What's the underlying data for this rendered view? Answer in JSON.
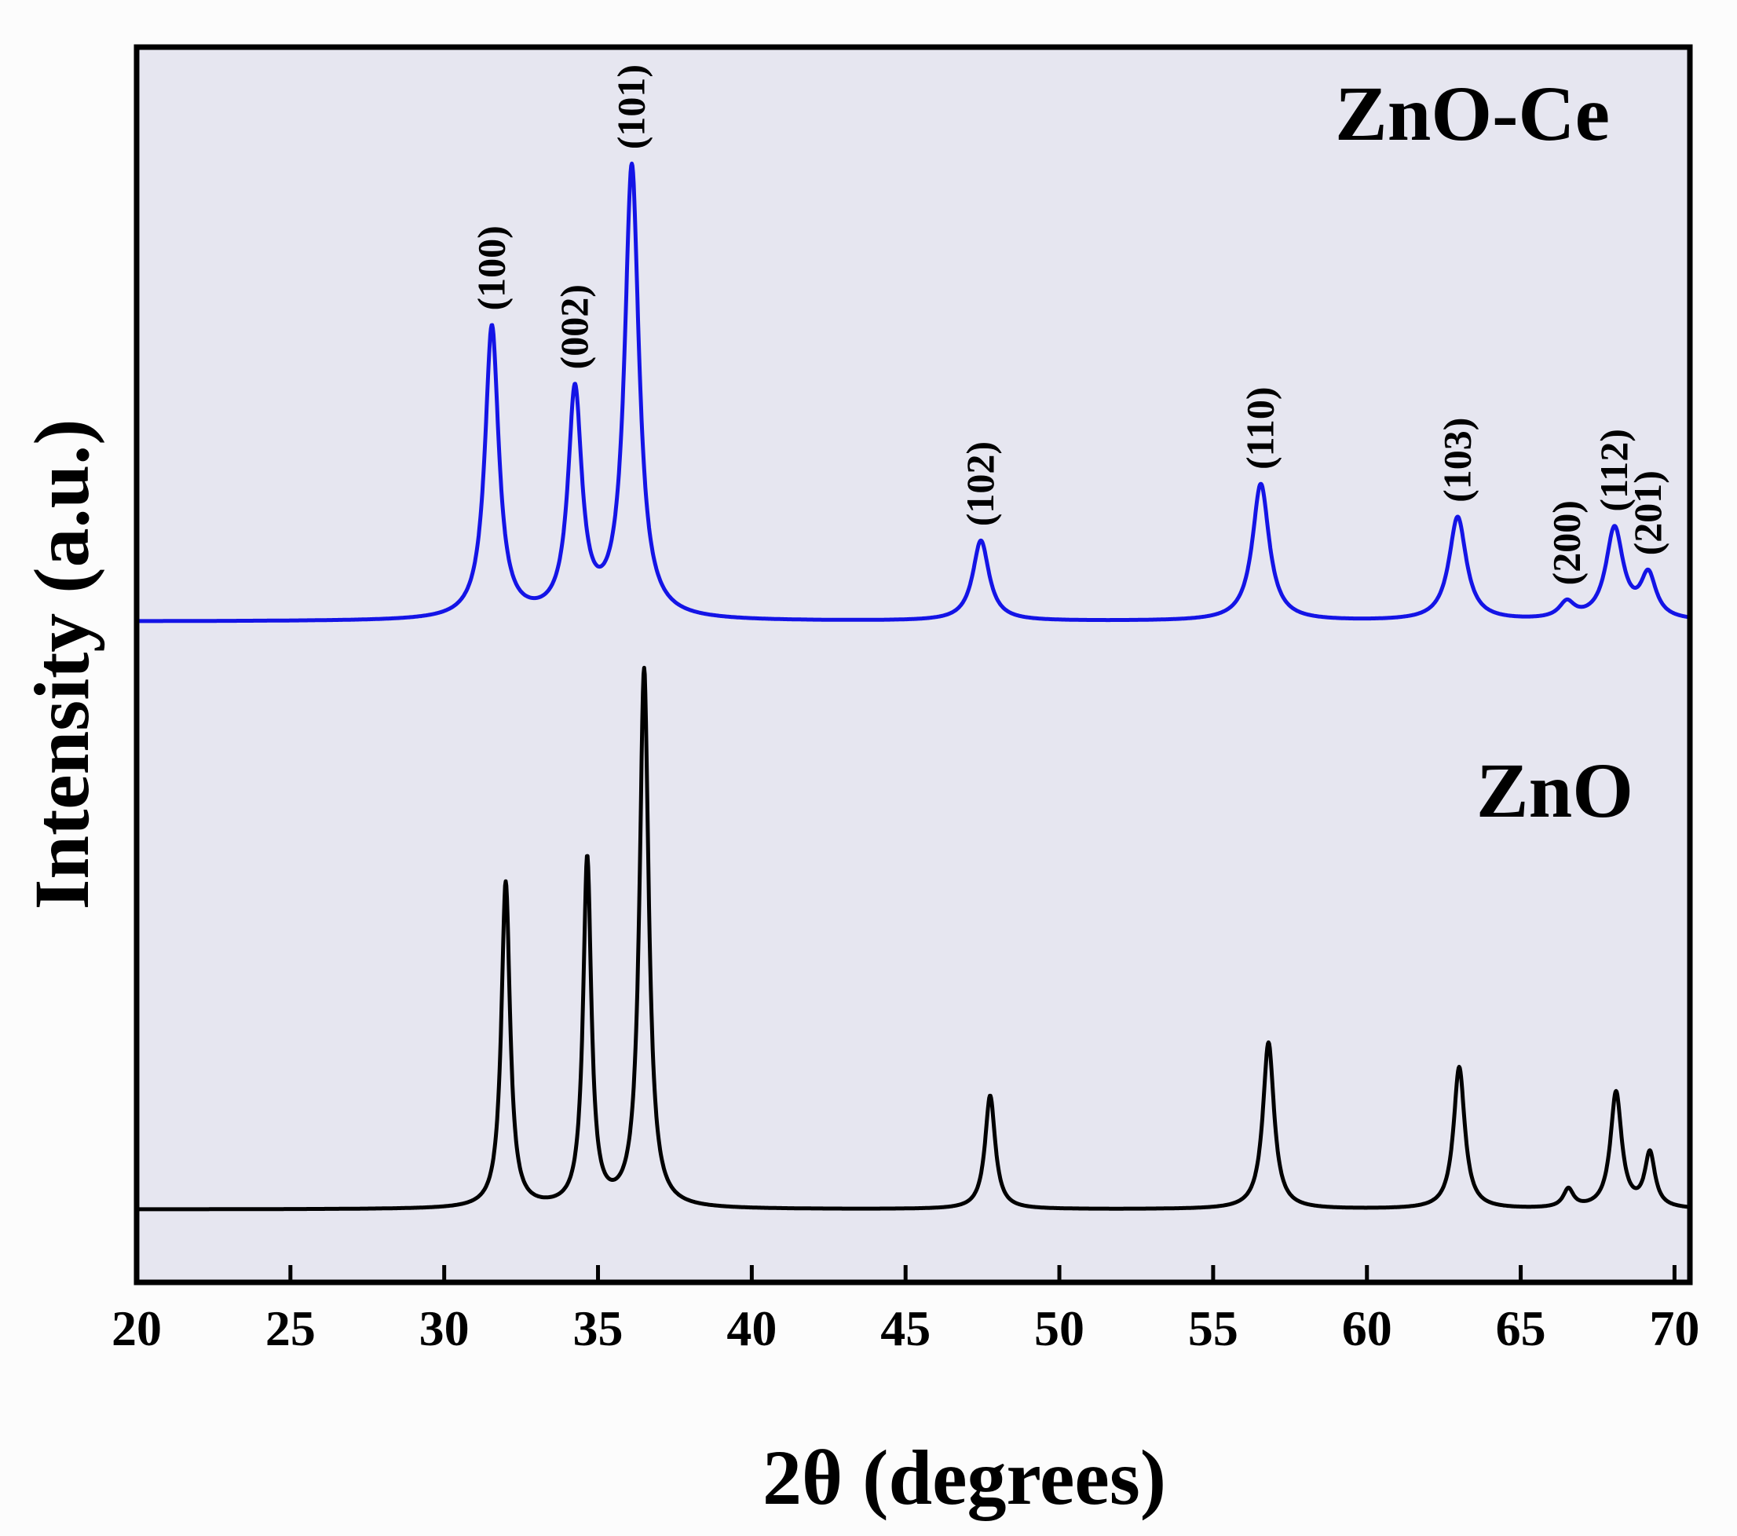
{
  "chart_data": {
    "type": "line",
    "title": "",
    "xlabel": "2θ (degrees)",
    "ylabel": "Intensity (a.u.)",
    "xlim": [
      20,
      70.5
    ],
    "ylim": [
      0,
      100
    ],
    "x_ticks": [
      20,
      25,
      30,
      35,
      40,
      45,
      50,
      55,
      60,
      65,
      70
    ],
    "y_ticks_shown": false,
    "grid": false,
    "legend": "none",
    "plot_background": "#e6e6f0",
    "page_background": "#fcfcfc",
    "series": [
      {
        "name": "ZnO-Ce",
        "color": "#1414e6",
        "baseline": 53.5,
        "peaks": [
          {
            "x": 31.55,
            "height": 23.7,
            "width": 0.27,
            "hkl": "(100)"
          },
          {
            "x": 34.25,
            "height": 18.2,
            "width": 0.27,
            "hkl": "(002)"
          },
          {
            "x": 36.1,
            "height": 36.6,
            "width": 0.28,
            "hkl": "(101)"
          },
          {
            "x": 47.45,
            "height": 6.5,
            "width": 0.32,
            "hkl": "(102)"
          },
          {
            "x": 56.55,
            "height": 11.1,
            "width": 0.33,
            "hkl": "(110)"
          },
          {
            "x": 62.95,
            "height": 8.4,
            "width": 0.34,
            "hkl": "(103)"
          },
          {
            "x": 66.5,
            "height": 1.3,
            "width": 0.3,
            "hkl": "(200)"
          },
          {
            "x": 68.05,
            "height": 7.4,
            "width": 0.34,
            "hkl": "(112)"
          },
          {
            "x": 69.15,
            "height": 3.5,
            "width": 0.3,
            "hkl": "(201)"
          }
        ]
      },
      {
        "name": "ZnO",
        "color": "#000000",
        "baseline": 5.9,
        "peaks": [
          {
            "x": 32.0,
            "height": 26.4,
            "width": 0.17,
            "hkl": ""
          },
          {
            "x": 34.65,
            "height": 28.2,
            "width": 0.16,
            "hkl": ""
          },
          {
            "x": 36.5,
            "height": 43.6,
            "width": 0.18,
            "hkl": ""
          },
          {
            "x": 47.75,
            "height": 9.2,
            "width": 0.2,
            "hkl": ""
          },
          {
            "x": 56.8,
            "height": 13.5,
            "width": 0.22,
            "hkl": ""
          },
          {
            "x": 63.0,
            "height": 11.5,
            "width": 0.22,
            "hkl": ""
          },
          {
            "x": 66.55,
            "height": 1.5,
            "width": 0.2,
            "hkl": ""
          },
          {
            "x": 68.1,
            "height": 9.4,
            "width": 0.22,
            "hkl": ""
          },
          {
            "x": 69.2,
            "height": 4.4,
            "width": 0.2,
            "hkl": ""
          }
        ]
      }
    ],
    "series_labels": [
      "ZnO-Ce",
      "ZnO"
    ]
  }
}
